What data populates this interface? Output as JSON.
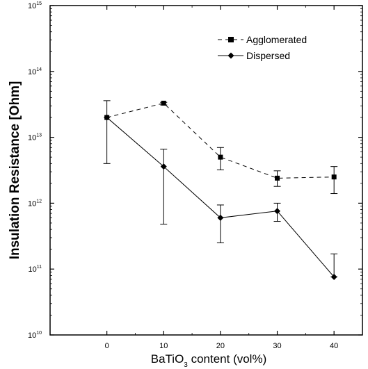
{
  "chart_data": {
    "type": "line",
    "xlabel": {
      "main": "BaTiO",
      "sub": "3",
      "rest": " content (vol%)"
    },
    "ylabel": "Insulation Resistance [Ohm]",
    "xlim": [
      -10,
      45
    ],
    "ylim": [
      10000000000.0,
      1000000000000000.0
    ],
    "yscale": "log",
    "x_ticks": [
      0,
      10,
      20,
      30,
      40
    ],
    "y_ticks": [
      {
        "base": "10",
        "exp": "10",
        "value": 10000000000.0
      },
      {
        "base": "10",
        "exp": "11",
        "value": 100000000000.0
      },
      {
        "base": "10",
        "exp": "12",
        "value": 1000000000000.0
      },
      {
        "base": "10",
        "exp": "13",
        "value": 10000000000000.0
      },
      {
        "base": "10",
        "exp": "14",
        "value": 100000000000000.0
      },
      {
        "base": "10",
        "exp": "15",
        "value": 1000000000000000.0
      }
    ],
    "legend_position": "top-right",
    "series": [
      {
        "name": "Agglomerated",
        "marker": "square",
        "line": "dashed",
        "x": [
          0,
          10,
          20,
          30,
          40
        ],
        "y": [
          20000000000000.0,
          33000000000000.0,
          5000000000000.0,
          2400000000000.0,
          2500000000000.0
        ],
        "err_low": [
          20000000000000.0,
          31000000000000.0,
          3200000000000.0,
          1800000000000.0,
          1400000000000.0
        ],
        "err_high": [
          20000000000000.0,
          34000000000000.0,
          7000000000000.0,
          3100000000000.0,
          3600000000000.0
        ]
      },
      {
        "name": "Dispersed",
        "marker": "diamond",
        "line": "solid",
        "x": [
          0,
          10,
          20,
          30,
          40
        ],
        "y": [
          20000000000000.0,
          3600000000000.0,
          600000000000.0,
          760000000000.0,
          76000000000.0
        ],
        "err_low": [
          4000000000000.0,
          480000000000.0,
          250000000000.0,
          530000000000.0,
          76000000000.0
        ],
        "err_high": [
          36000000000000.0,
          6600000000000.0,
          940000000000.0,
          1000000000000.0,
          170000000000.0
        ]
      }
    ]
  }
}
